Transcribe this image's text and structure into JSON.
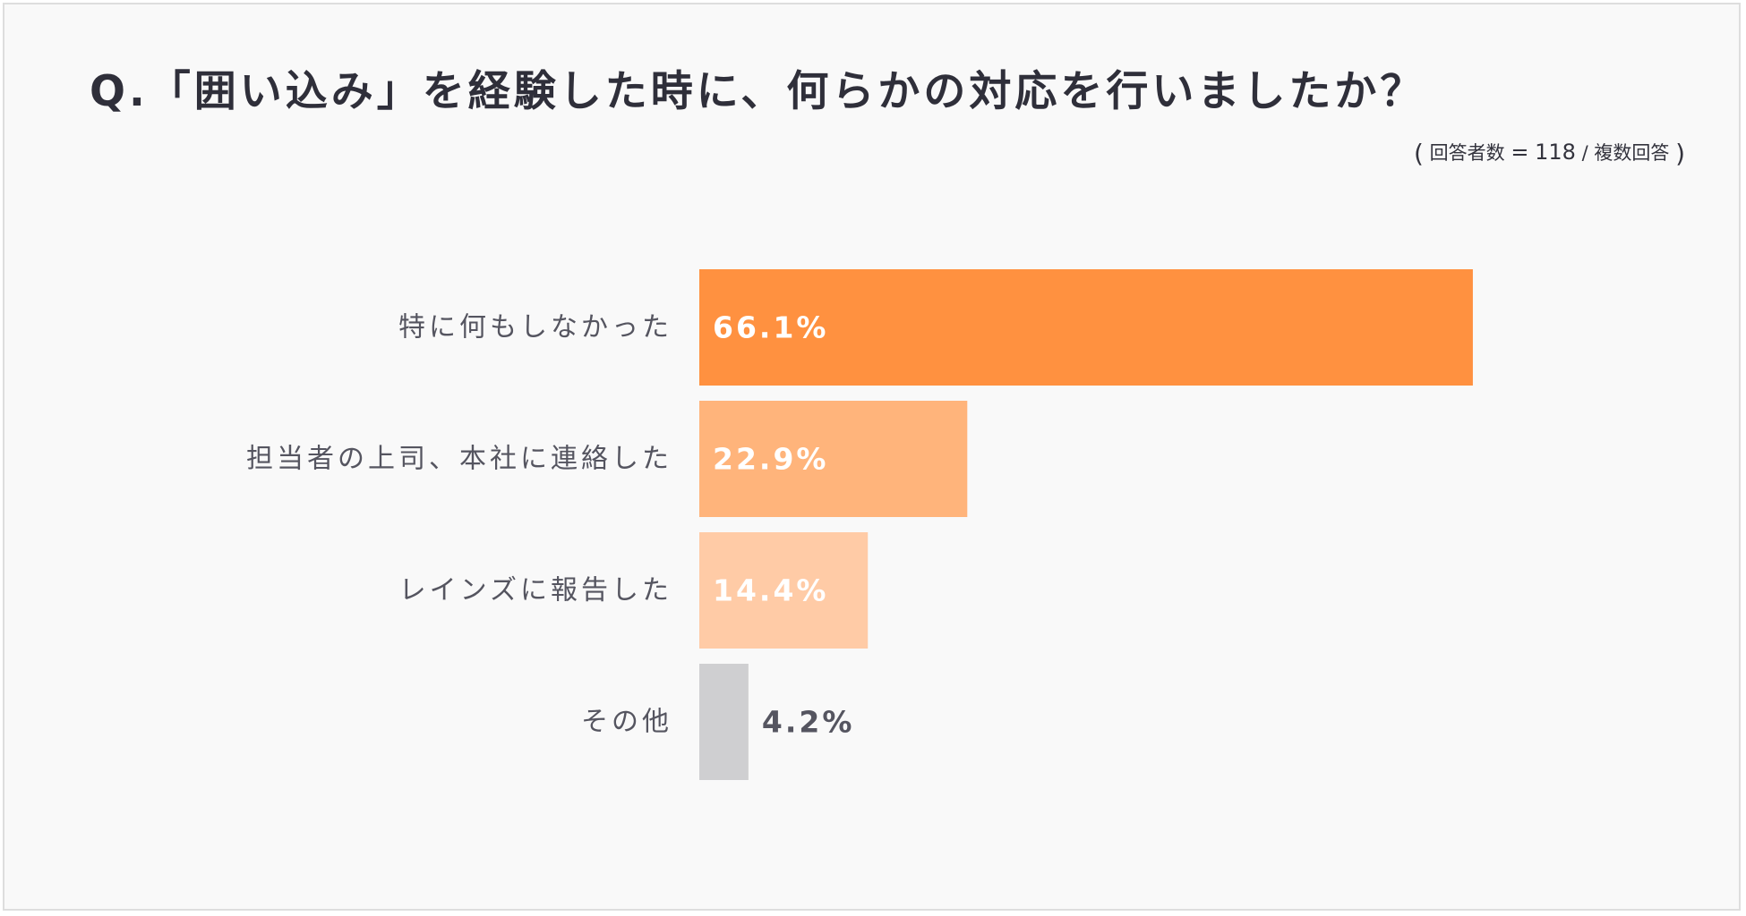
{
  "title": "Q.「囲い込み」を経験した時に、何らかの対応を行いましたか？",
  "note": {
    "open": "(",
    "respondents_label": "回答者数",
    "equals": "=",
    "respondents_count": "118",
    "slash": "/",
    "multi_label": "複数回答",
    "close": ")"
  },
  "chart_data": {
    "type": "bar",
    "orientation": "horizontal",
    "categories": [
      "特に何もしなかった",
      "担当者の上司、本社に連絡した",
      "レインズに報告した",
      "その他"
    ],
    "values": [
      66.1,
      22.9,
      14.4,
      4.2
    ],
    "value_labels": [
      "66.1%",
      "22.9%",
      "14.4%",
      "4.2%"
    ],
    "unit": "%",
    "xlim": [
      0,
      100
    ],
    "grid": false,
    "colors": [
      "#ff9140",
      "#ffb47b",
      "#ffcba6",
      "#cfcfd1"
    ],
    "label_colors": [
      "#ffffff",
      "#ffffff",
      "#ffffff",
      "#555560"
    ]
  }
}
